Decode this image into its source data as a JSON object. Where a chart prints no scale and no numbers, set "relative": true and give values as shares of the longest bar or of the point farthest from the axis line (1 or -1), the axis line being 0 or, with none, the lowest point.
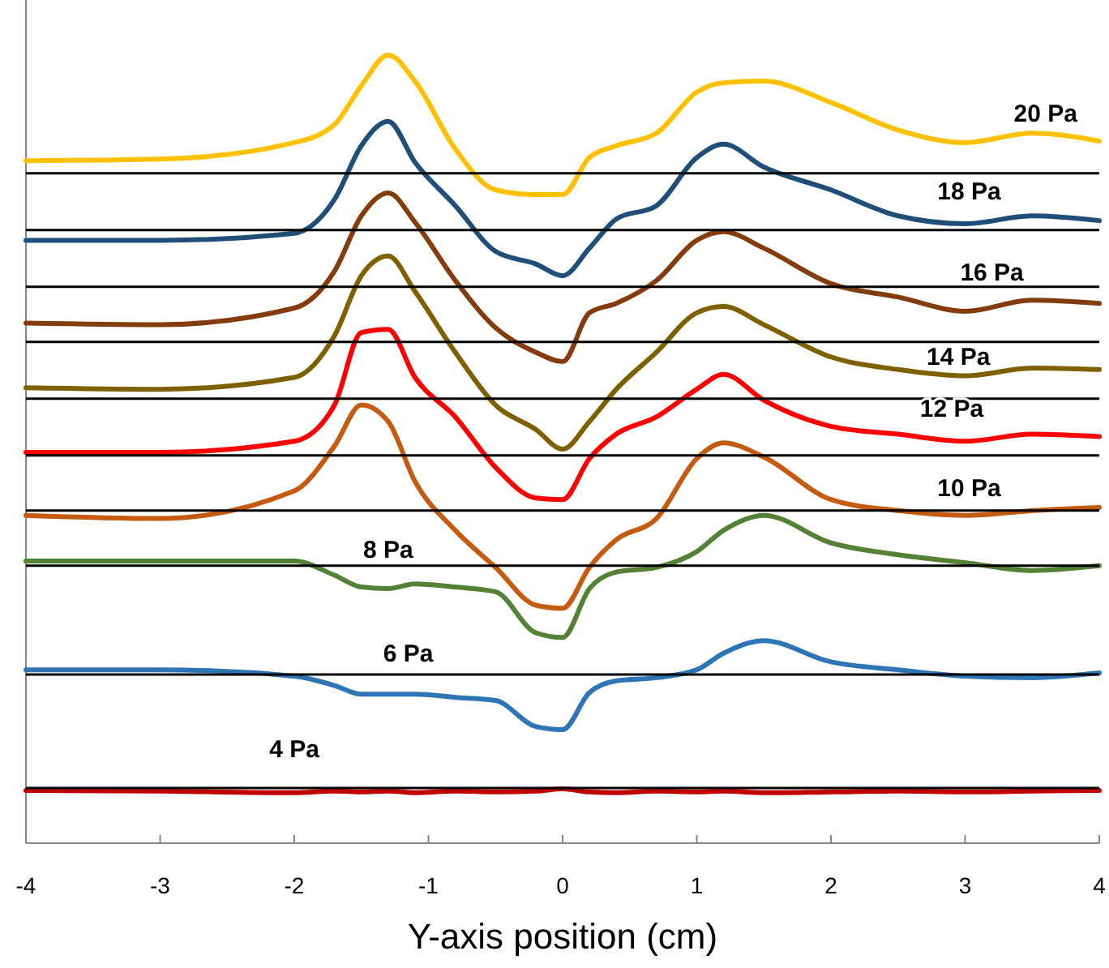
{
  "chart_data": {
    "type": "line",
    "xlabel": "Y-axis position (cm)",
    "relative": true,
    "x": [
      -4,
      -3,
      -2,
      -1.7,
      -1.5,
      -1.3,
      -1.1,
      -0.8,
      -0.5,
      -0.2,
      0,
      0.2,
      0.4,
      0.7,
      1,
      1.2,
      1.5,
      2,
      2.5,
      3,
      3.5,
      4
    ],
    "xlim": [
      -4,
      4
    ],
    "xticks": [
      -4,
      -3,
      -2,
      -1,
      0,
      1,
      2,
      3,
      4
    ],
    "marker": "none",
    "line_style": "solid",
    "ref_lines": [
      {
        "axis": "y",
        "value": 0.85,
        "color": "#000000"
      },
      {
        "axis": "y",
        "value": 0.778,
        "color": "#000000"
      },
      {
        "axis": "y",
        "value": 0.706,
        "color": "#000000"
      },
      {
        "axis": "y",
        "value": 0.636,
        "color": "#000000"
      },
      {
        "axis": "y",
        "value": 0.564,
        "color": "#000000"
      },
      {
        "axis": "y",
        "value": 0.492,
        "color": "#000000"
      },
      {
        "axis": "y",
        "value": 0.422,
        "color": "#000000"
      },
      {
        "axis": "y",
        "value": 0.352,
        "color": "#000000"
      },
      {
        "axis": "y",
        "value": 0.214,
        "color": "#000000"
      },
      {
        "axis": "y",
        "value": 0.07,
        "color": "#000000"
      }
    ],
    "series": [
      {
        "name": "20 Pa",
        "color": "#ffc000",
        "values": [
          0.866,
          0.868,
          0.889,
          0.912,
          0.961,
          1.0,
          0.967,
          0.881,
          0.829,
          0.823,
          0.823,
          0.87,
          0.885,
          0.901,
          0.953,
          0.965,
          0.967,
          0.94,
          0.905,
          0.889,
          0.901,
          0.891
        ]
      },
      {
        "name": "18 Pa",
        "color": "#1f4e79",
        "values": [
          0.765,
          0.765,
          0.774,
          0.817,
          0.885,
          0.916,
          0.864,
          0.809,
          0.751,
          0.735,
          0.72,
          0.755,
          0.792,
          0.809,
          0.87,
          0.887,
          0.858,
          0.829,
          0.796,
          0.786,
          0.796,
          0.79
        ]
      },
      {
        "name": "16 Pa",
        "color": "#843c0c",
        "values": [
          0.66,
          0.658,
          0.679,
          0.726,
          0.796,
          0.825,
          0.788,
          0.714,
          0.654,
          0.623,
          0.611,
          0.673,
          0.685,
          0.714,
          0.765,
          0.776,
          0.755,
          0.71,
          0.693,
          0.675,
          0.689,
          0.685
        ]
      },
      {
        "name": "14 Pa",
        "color": "#7f6000",
        "values": [
          0.578,
          0.576,
          0.591,
          0.644,
          0.72,
          0.745,
          0.7,
          0.623,
          0.556,
          0.525,
          0.5,
          0.535,
          0.576,
          0.623,
          0.673,
          0.681,
          0.658,
          0.617,
          0.601,
          0.593,
          0.603,
          0.601
        ]
      },
      {
        "name": "12 Pa",
        "color": "#ff0000",
        "values": [
          0.496,
          0.496,
          0.51,
          0.556,
          0.648,
          0.652,
          0.591,
          0.541,
          0.477,
          0.438,
          0.436,
          0.488,
          0.519,
          0.541,
          0.576,
          0.595,
          0.562,
          0.529,
          0.519,
          0.51,
          0.519,
          0.516
        ]
      },
      {
        "name": "10 Pa",
        "color": "#c55a11",
        "values": [
          0.416,
          0.412,
          0.447,
          0.504,
          0.556,
          0.535,
          0.459,
          0.397,
          0.35,
          0.302,
          0.298,
          0.35,
          0.385,
          0.412,
          0.488,
          0.508,
          0.49,
          0.436,
          0.422,
          0.416,
          0.422,
          0.426
        ]
      },
      {
        "name": "8 Pa",
        "color": "#548235",
        "values": [
          0.358,
          0.358,
          0.358,
          0.34,
          0.325,
          0.323,
          0.329,
          0.325,
          0.319,
          0.267,
          0.261,
          0.323,
          0.344,
          0.35,
          0.37,
          0.397,
          0.416,
          0.381,
          0.366,
          0.356,
          0.346,
          0.352
        ]
      },
      {
        "name": "6 Pa",
        "color": "#2e75b6",
        "values": [
          0.22,
          0.22,
          0.212,
          0.2,
          0.189,
          0.189,
          0.189,
          0.185,
          0.181,
          0.148,
          0.144,
          0.191,
          0.206,
          0.21,
          0.22,
          0.241,
          0.257,
          0.23,
          0.22,
          0.212,
          0.21,
          0.216
        ]
      },
      {
        "name": "4 Pa",
        "color": "#c00000",
        "values": [
          0.067,
          0.066,
          0.064,
          0.066,
          0.065,
          0.066,
          0.064,
          0.066,
          0.065,
          0.066,
          0.069,
          0.065,
          0.064,
          0.066,
          0.065,
          0.066,
          0.064,
          0.065,
          0.066,
          0.065,
          0.066,
          0.067
        ]
      }
    ]
  }
}
